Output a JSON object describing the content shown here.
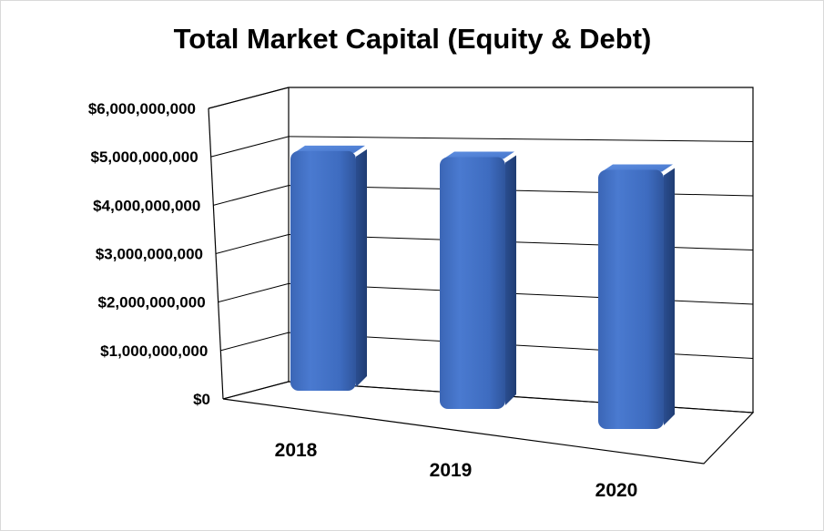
{
  "chart_data": {
    "type": "bar",
    "title": "Total Market Capital (Equity & Debt)",
    "xlabel": "",
    "ylabel": "",
    "categories": [
      "2018",
      "2019",
      "2020"
    ],
    "values": [
      4950000000,
      5200000000,
      5350000000
    ],
    "yticks": [
      "$0",
      "$1,000,000,000",
      "$2,000,000,000",
      "$3,000,000,000",
      "$4,000,000,000",
      "$5,000,000,000",
      "$6,000,000,000"
    ],
    "ylim": [
      0,
      6000000000
    ],
    "grid": true,
    "legend": "none",
    "bar_color": "#4472C4"
  }
}
